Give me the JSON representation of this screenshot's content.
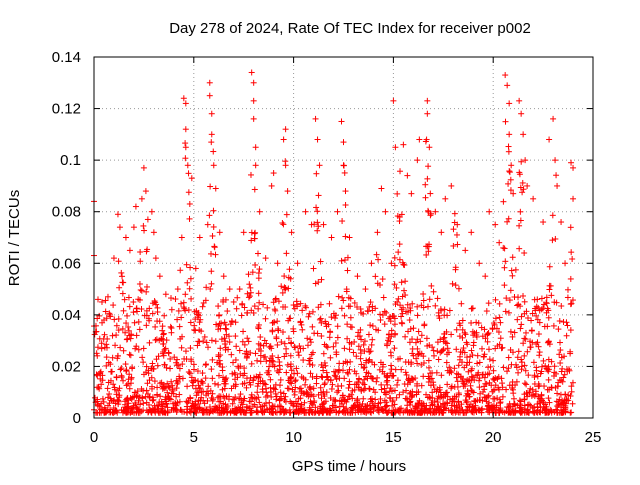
{
  "chart_data": {
    "type": "scatter",
    "title": "Day 278 of 2024, Rate Of TEC Index for receiver p002",
    "xlabel": "GPS time / hours",
    "ylabel": "ROTI / TECUs",
    "xlim": [
      0,
      25
    ],
    "ylim": [
      0,
      0.14
    ],
    "x_ticks": [
      0,
      5,
      10,
      15,
      20,
      25
    ],
    "y_ticks": [
      0,
      0.02,
      0.04,
      0.06,
      0.08,
      0.1,
      0.12,
      0.14
    ],
    "x_tick_labels": [
      "0",
      "5",
      "10",
      "15",
      "20",
      "25"
    ],
    "y_tick_labels": [
      "0",
      "0.02",
      "0.04",
      "0.06",
      "0.08",
      "0.1",
      "0.12",
      "0.14"
    ],
    "grid": true,
    "legend": "none",
    "marker": "plus",
    "color": "#ff0000",
    "series": [
      {
        "points": [
          [
            0.0,
            0.084
          ],
          [
            0.0,
            0.063
          ],
          [
            0.2,
            0.046
          ],
          [
            0.4,
            0.045
          ],
          [
            0.5,
            0.038
          ],
          [
            0.7,
            0.047
          ],
          [
            0.8,
            0.04
          ],
          [
            1.0,
            0.062
          ],
          [
            1.2,
            0.079
          ],
          [
            1.3,
            0.074
          ],
          [
            1.6,
            0.07
          ],
          [
            1.8,
            0.065
          ],
          [
            2.0,
            0.074
          ],
          [
            2.1,
            0.082
          ],
          [
            2.4,
            0.085
          ],
          [
            2.5,
            0.097
          ],
          [
            2.6,
            0.088
          ],
          [
            2.7,
            0.077
          ],
          [
            2.9,
            0.08
          ],
          [
            3.0,
            0.072
          ],
          [
            3.1,
            0.062
          ],
          [
            3.3,
            0.055
          ],
          [
            3.6,
            0.048
          ],
          [
            3.9,
            0.042
          ],
          [
            4.2,
            0.05
          ],
          [
            4.4,
            0.07
          ],
          [
            4.5,
            0.124
          ],
          [
            4.6,
            0.122
          ],
          [
            4.6,
            0.112
          ],
          [
            4.6,
            0.105
          ],
          [
            4.7,
            0.098
          ],
          [
            4.8,
            0.083
          ],
          [
            4.9,
            0.093
          ],
          [
            5.1,
            0.058
          ],
          [
            5.3,
            0.07
          ],
          [
            5.7,
            0.075
          ],
          [
            5.8,
            0.13
          ],
          [
            5.8,
            0.125
          ],
          [
            5.9,
            0.118
          ],
          [
            5.9,
            0.11
          ],
          [
            6.0,
            0.098
          ],
          [
            6.1,
            0.089
          ],
          [
            6.3,
            0.072
          ],
          [
            6.5,
            0.055
          ],
          [
            6.8,
            0.05
          ],
          [
            7.0,
            0.045
          ],
          [
            7.3,
            0.05
          ],
          [
            7.5,
            0.072
          ],
          [
            7.9,
            0.134
          ],
          [
            8.0,
            0.13
          ],
          [
            8.0,
            0.123
          ],
          [
            8.0,
            0.116
          ],
          [
            8.1,
            0.105
          ],
          [
            8.1,
            0.098
          ],
          [
            8.3,
            0.08
          ],
          [
            8.6,
            0.062
          ],
          [
            8.9,
            0.09
          ],
          [
            9.0,
            0.095
          ],
          [
            9.2,
            0.06
          ],
          [
            9.5,
            0.108
          ],
          [
            9.6,
            0.112
          ],
          [
            9.6,
            0.098
          ],
          [
            9.7,
            0.088
          ],
          [
            9.9,
            0.072
          ],
          [
            10.2,
            0.06
          ],
          [
            10.6,
            0.08
          ],
          [
            10.9,
            0.075
          ],
          [
            11.1,
            0.116
          ],
          [
            11.2,
            0.108
          ],
          [
            11.3,
            0.098
          ],
          [
            11.5,
            0.075
          ],
          [
            11.9,
            0.07
          ],
          [
            12.2,
            0.08
          ],
          [
            12.4,
            0.115
          ],
          [
            12.5,
            0.107
          ],
          [
            12.5,
            0.098
          ],
          [
            12.6,
            0.088
          ],
          [
            12.8,
            0.07
          ],
          [
            13.2,
            0.055
          ],
          [
            13.6,
            0.05
          ],
          [
            13.9,
            0.06
          ],
          [
            14.2,
            0.072
          ],
          [
            14.4,
            0.089
          ],
          [
            14.6,
            0.08
          ],
          [
            14.9,
            0.06
          ],
          [
            15.0,
            0.123
          ],
          [
            15.1,
            0.105
          ],
          [
            15.5,
            0.106
          ],
          [
            15.7,
            0.094
          ],
          [
            15.9,
            0.087
          ],
          [
            16.2,
            0.1
          ],
          [
            16.3,
            0.108
          ],
          [
            16.7,
            0.123
          ],
          [
            16.7,
            0.118
          ],
          [
            16.8,
            0.105
          ],
          [
            17.1,
            0.08
          ],
          [
            17.4,
            0.072
          ],
          [
            17.6,
            0.085
          ],
          [
            17.9,
            0.09
          ],
          [
            18.2,
            0.075
          ],
          [
            18.6,
            0.065
          ],
          [
            18.9,
            0.072
          ],
          [
            19.3,
            0.06
          ],
          [
            19.6,
            0.055
          ],
          [
            19.8,
            0.08
          ],
          [
            20.1,
            0.075
          ],
          [
            20.3,
            0.068
          ],
          [
            20.6,
            0.133
          ],
          [
            20.7,
            0.129
          ],
          [
            20.8,
            0.122
          ],
          [
            20.8,
            0.11
          ],
          [
            20.9,
            0.098
          ],
          [
            21.0,
            0.087
          ],
          [
            21.3,
            0.123
          ],
          [
            21.4,
            0.118
          ],
          [
            21.5,
            0.11
          ],
          [
            21.6,
            0.1
          ],
          [
            21.7,
            0.09
          ],
          [
            22.0,
            0.085
          ],
          [
            22.5,
            0.076
          ],
          [
            22.8,
            0.108
          ],
          [
            23.0,
            0.116
          ],
          [
            23.1,
            0.1
          ],
          [
            23.2,
            0.09
          ],
          [
            23.4,
            0.076
          ],
          [
            23.6,
            0.06
          ],
          [
            23.9,
            0.099
          ],
          [
            24.0,
            0.097
          ],
          [
            24.0,
            0.085
          ]
        ]
      }
    ]
  }
}
